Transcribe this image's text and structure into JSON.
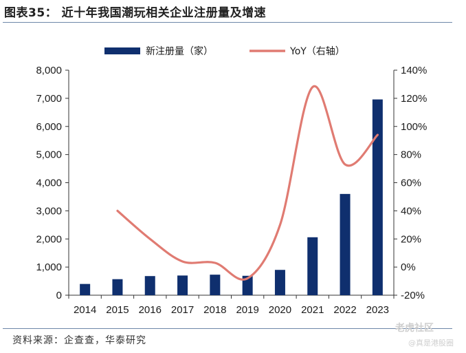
{
  "title": "图表35： 近十年我国潮玩相关企业注册量及增速",
  "source": "资料来源：企查查，华泰研究",
  "watermark": {
    "brand": "老虎社区",
    "handle": "@真是港股圈"
  },
  "chart_data": {
    "type": "bar+line",
    "categories": [
      "2014",
      "2015",
      "2016",
      "2017",
      "2018",
      "2019",
      "2020",
      "2021",
      "2022",
      "2023"
    ],
    "series": [
      {
        "name": "新注册量（家）",
        "type": "bar",
        "axis": "left",
        "color": "#0f2f6e",
        "values": [
          400,
          570,
          680,
          700,
          730,
          690,
          900,
          2060,
          3600,
          6960
        ]
      },
      {
        "name": "YoY（右轴）",
        "type": "line",
        "axis": "right",
        "color": "#e07b72",
        "values": [
          null,
          40,
          20,
          4,
          3,
          -8,
          30,
          128,
          73,
          94
        ]
      }
    ],
    "y_left": {
      "range": [
        0,
        8000
      ],
      "ticks": [
        "0",
        "1,000",
        "2,000",
        "3,000",
        "4,000",
        "5,000",
        "6,000",
        "7,000",
        "8,000"
      ]
    },
    "y_right": {
      "range": [
        -20,
        140
      ],
      "ticks": [
        "-20%",
        "0%",
        "20%",
        "40%",
        "60%",
        "80%",
        "100%",
        "120%",
        "140%"
      ]
    },
    "legend_position": "top"
  }
}
